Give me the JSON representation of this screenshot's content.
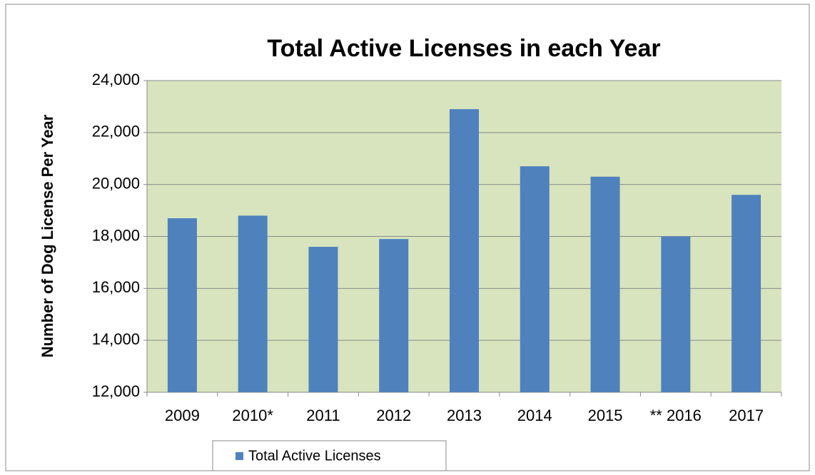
{
  "chart_data": {
    "type": "bar",
    "title": "Total Active Licenses in each Year",
    "y_label": "Number of Dog License Per Year",
    "categories": [
      "2009",
      "2010*",
      "2011",
      "2012",
      "2013",
      "2014",
      "2015",
      "** 2016",
      "2017"
    ],
    "series": [
      {
        "name": "Total Active Licenses",
        "color": "#4f81bd",
        "values": [
          18700,
          18800,
          17600,
          17900,
          22900,
          20700,
          20300,
          18000,
          19600
        ]
      }
    ],
    "ylim": [
      12000,
      24000
    ],
    "yticks": [
      {
        "value": 12000,
        "label": "12,000"
      },
      {
        "value": 14000,
        "label": "14,000"
      },
      {
        "value": 16000,
        "label": "16,000"
      },
      {
        "value": 18000,
        "label": "18,000"
      },
      {
        "value": 20000,
        "label": "20,000"
      },
      {
        "value": 22000,
        "label": "22,000"
      },
      {
        "value": 24000,
        "label": "24,000"
      }
    ],
    "grid": true,
    "legend": "bottom"
  }
}
